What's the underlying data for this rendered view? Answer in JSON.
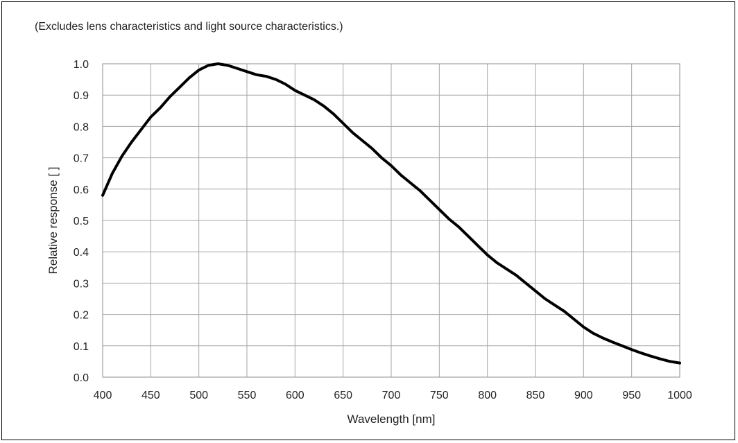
{
  "note": "(Excludes lens characteristics and light source characteristics.)",
  "chart_data": {
    "type": "line",
    "title": "",
    "xlabel": "Wavelength [nm]",
    "ylabel": "Relative response [ ]",
    "xlim": [
      400,
      1000
    ],
    "ylim": [
      0,
      1.0
    ],
    "x_ticks": [
      400,
      450,
      500,
      550,
      600,
      650,
      700,
      750,
      800,
      850,
      900,
      950,
      1000
    ],
    "y_ticks": [
      0,
      0.1,
      0.2,
      0.3,
      0.4,
      0.5,
      0.6,
      0.7,
      0.8,
      0.9,
      1.0
    ],
    "x_tick_labels": [
      "400",
      "450",
      "500",
      "550",
      "600",
      "650",
      "700",
      "750",
      "800",
      "850",
      "900",
      "950",
      "1000"
    ],
    "y_tick_labels": [
      "0.0",
      "0.1",
      "0.2",
      "0.3",
      "0.4",
      "0.5",
      "0.6",
      "0.7",
      "0.8",
      "0.9",
      "1.0"
    ],
    "grid": true,
    "line_color": "#000000",
    "grid_color": "#a6a6a6",
    "series": [
      {
        "x": [
          400,
          410,
          420,
          430,
          440,
          450,
          460,
          470,
          480,
          490,
          500,
          510,
          520,
          530,
          540,
          550,
          560,
          570,
          580,
          590,
          600,
          610,
          620,
          630,
          640,
          650,
          660,
          670,
          680,
          690,
          700,
          710,
          720,
          730,
          740,
          750,
          760,
          770,
          780,
          790,
          800,
          810,
          820,
          830,
          840,
          850,
          860,
          870,
          880,
          890,
          900,
          910,
          920,
          930,
          940,
          950,
          960,
          970,
          980,
          990,
          1000
        ],
        "values": [
          0.58,
          0.65,
          0.705,
          0.75,
          0.79,
          0.83,
          0.86,
          0.895,
          0.925,
          0.955,
          0.98,
          0.995,
          1.0,
          0.995,
          0.985,
          0.975,
          0.965,
          0.96,
          0.95,
          0.935,
          0.915,
          0.9,
          0.885,
          0.865,
          0.84,
          0.81,
          0.78,
          0.755,
          0.73,
          0.7,
          0.675,
          0.645,
          0.62,
          0.595,
          0.565,
          0.535,
          0.505,
          0.48,
          0.45,
          0.42,
          0.39,
          0.365,
          0.345,
          0.325,
          0.3,
          0.275,
          0.25,
          0.23,
          0.21,
          0.185,
          0.16,
          0.14,
          0.125,
          0.112,
          0.1,
          0.088,
          0.077,
          0.067,
          0.058,
          0.05,
          0.045
        ]
      }
    ]
  }
}
